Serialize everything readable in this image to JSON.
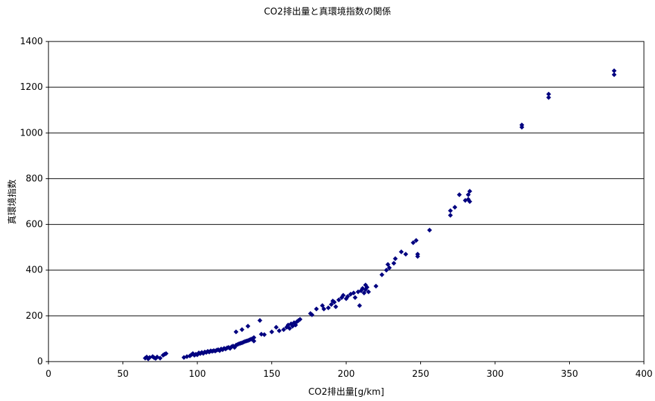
{
  "chart_data": {
    "type": "scatter",
    "title": "CO2排出量と真環境指数の関係",
    "xlabel": "CO2排出量[g/km]",
    "ylabel": "真環境指数",
    "xlim": [
      0,
      400
    ],
    "ylim": [
      0,
      1400
    ],
    "xticks": [
      "0",
      "50",
      "100",
      "150",
      "200",
      "250",
      "300",
      "350",
      "400"
    ],
    "yticks": [
      "0",
      "200",
      "400",
      "600",
      "800",
      "1000",
      "1200",
      "1400"
    ],
    "grid": "horizontal",
    "legend": "none",
    "marker": "diamond",
    "color": "#000080",
    "series": [
      {
        "points": [
          [
            65,
            15
          ],
          [
            66,
            20
          ],
          [
            67,
            12
          ],
          [
            68,
            18
          ],
          [
            70,
            22
          ],
          [
            71,
            17
          ],
          [
            72,
            14
          ],
          [
            73,
            20
          ],
          [
            75,
            15
          ],
          [
            77,
            28
          ],
          [
            78,
            32
          ],
          [
            79,
            35
          ],
          [
            91,
            18
          ],
          [
            93,
            22
          ],
          [
            95,
            25
          ],
          [
            96,
            30
          ],
          [
            97,
            35
          ],
          [
            98,
            28
          ],
          [
            99,
            32
          ],
          [
            100,
            30
          ],
          [
            101,
            38
          ],
          [
            102,
            35
          ],
          [
            103,
            40
          ],
          [
            104,
            36
          ],
          [
            105,
            42
          ],
          [
            106,
            40
          ],
          [
            107,
            45
          ],
          [
            108,
            42
          ],
          [
            109,
            47
          ],
          [
            110,
            45
          ],
          [
            111,
            48
          ],
          [
            112,
            46
          ],
          [
            113,
            50
          ],
          [
            114,
            52
          ],
          [
            115,
            48
          ],
          [
            116,
            55
          ],
          [
            117,
            52
          ],
          [
            118,
            58
          ],
          [
            119,
            55
          ],
          [
            120,
            60
          ],
          [
            121,
            62
          ],
          [
            122,
            58
          ],
          [
            123,
            65
          ],
          [
            124,
            68
          ],
          [
            125,
            62
          ],
          [
            126,
            72
          ],
          [
            127,
            75
          ],
          [
            128,
            78
          ],
          [
            129,
            80
          ],
          [
            130,
            82
          ],
          [
            131,
            85
          ],
          [
            132,
            88
          ],
          [
            133,
            90
          ],
          [
            134,
            92
          ],
          [
            135,
            95
          ],
          [
            136,
            98
          ],
          [
            137,
            100
          ],
          [
            138,
            105
          ],
          [
            126,
            130
          ],
          [
            130,
            140
          ],
          [
            134,
            155
          ],
          [
            138,
            90
          ],
          [
            142,
            180
          ],
          [
            143,
            120
          ],
          [
            145,
            118
          ],
          [
            150,
            130
          ],
          [
            153,
            150
          ],
          [
            155,
            135
          ],
          [
            158,
            140
          ],
          [
            160,
            150
          ],
          [
            161,
            160
          ],
          [
            162,
            145
          ],
          [
            163,
            165
          ],
          [
            164,
            155
          ],
          [
            165,
            170
          ],
          [
            166,
            160
          ],
          [
            167,
            175
          ],
          [
            168,
            180
          ],
          [
            169,
            185
          ],
          [
            176,
            210
          ],
          [
            177,
            205
          ],
          [
            180,
            230
          ],
          [
            184,
            245
          ],
          [
            185,
            230
          ],
          [
            188,
            235
          ],
          [
            190,
            250
          ],
          [
            191,
            265
          ],
          [
            192,
            260
          ],
          [
            193,
            240
          ],
          [
            195,
            270
          ],
          [
            197,
            280
          ],
          [
            198,
            290
          ],
          [
            200,
            275
          ],
          [
            201,
            285
          ],
          [
            203,
            295
          ],
          [
            205,
            300
          ],
          [
            206,
            280
          ],
          [
            208,
            305
          ],
          [
            209,
            245
          ],
          [
            210,
            310
          ],
          [
            211,
            320
          ],
          [
            212,
            300
          ],
          [
            213,
            315
          ],
          [
            213,
            335
          ],
          [
            214,
            325
          ],
          [
            215,
            305
          ],
          [
            220,
            330
          ],
          [
            224,
            380
          ],
          [
            227,
            400
          ],
          [
            228,
            425
          ],
          [
            229,
            410
          ],
          [
            232,
            430
          ],
          [
            233,
            450
          ],
          [
            237,
            480
          ],
          [
            240,
            470
          ],
          [
            245,
            520
          ],
          [
            247,
            530
          ],
          [
            248,
            470
          ],
          [
            248,
            460
          ],
          [
            256,
            575
          ],
          [
            270,
            640
          ],
          [
            270,
            660
          ],
          [
            273,
            675
          ],
          [
            276,
            730
          ],
          [
            280,
            705
          ],
          [
            282,
            710
          ],
          [
            282,
            730
          ],
          [
            283,
            745
          ],
          [
            283,
            700
          ],
          [
            318,
            1025
          ],
          [
            318,
            1035
          ],
          [
            336,
            1155
          ],
          [
            336,
            1170
          ],
          [
            380,
            1255
          ],
          [
            380,
            1272
          ]
        ]
      }
    ]
  }
}
